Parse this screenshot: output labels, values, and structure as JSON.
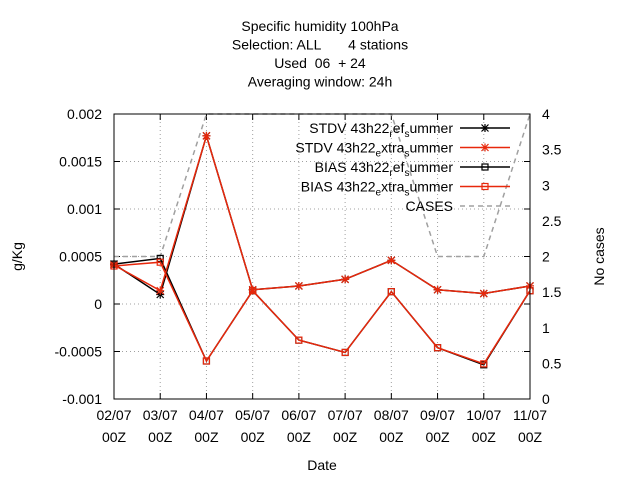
{
  "chart_data": {
    "type": "line",
    "title_lines": [
      "Specific humidity 100hPa",
      "Selection: ALL       4 stations",
      "Used  06  + 24",
      "Averaging window: 24h"
    ],
    "xlabel": "Date",
    "ylabel": "g/Kg",
    "y2label": "No cases",
    "categories": [
      [
        "02/07",
        "00Z"
      ],
      [
        "03/07",
        "00Z"
      ],
      [
        "04/07",
        "00Z"
      ],
      [
        "05/07",
        "00Z"
      ],
      [
        "06/07",
        "00Z"
      ],
      [
        "07/07",
        "00Z"
      ],
      [
        "08/07",
        "00Z"
      ],
      [
        "09/07",
        "00Z"
      ],
      [
        "10/07",
        "00Z"
      ],
      [
        "11/07",
        "00Z"
      ]
    ],
    "ylim": [
      -0.001,
      0.002
    ],
    "yticks": [
      "-0.001",
      "-0.0005",
      "0",
      "0.0005",
      "0.001",
      "0.0015",
      "0.002"
    ],
    "y2lim": [
      0,
      4
    ],
    "y2ticks": [
      "0",
      "0.5",
      "1",
      "1.5",
      "2",
      "2.5",
      "3",
      "3.5",
      "4"
    ],
    "grid": true,
    "legend_position": "top-right",
    "series": [
      {
        "name": "STDV 43h22",
        "label": {
          "base": "STDV 43h22",
          "sub1": "r",
          "mid": "ef",
          "sub2": "s",
          "tail": "ummer"
        },
        "color": "#000000",
        "marker": "star",
        "axis": "y",
        "values": [
          0.00042,
          0.0001,
          0.00177,
          0.00015,
          0.00019,
          0.00026,
          0.00046,
          0.00015,
          0.00011,
          0.00019
        ]
      },
      {
        "name": "STDV 43h22",
        "label": {
          "base": "STDV 43h22",
          "sub1": "e",
          "mid": "xtra",
          "sub2": "s",
          "tail": "ummer"
        },
        "color": "#e8280c",
        "marker": "star",
        "axis": "y",
        "values": [
          0.00041,
          0.00014,
          0.00177,
          0.00015,
          0.00019,
          0.00026,
          0.00046,
          0.00015,
          0.00011,
          0.00019
        ]
      },
      {
        "name": "BIAS 43h22",
        "label": {
          "base": "BIAS 43h22",
          "sub1": "r",
          "mid": "ef",
          "sub2": "s",
          "tail": "ummer"
        },
        "color": "#000000",
        "marker": "square",
        "axis": "y",
        "values": [
          0.00042,
          0.00048,
          -0.0006,
          0.00014,
          -0.00038,
          -0.00051,
          0.00013,
          -0.00046,
          -0.00064,
          0.00014
        ]
      },
      {
        "name": "BIAS 43h22",
        "label": {
          "base": "BIAS 43h22",
          "sub1": "e",
          "mid": "xtra",
          "sub2": "s",
          "tail": "ummer"
        },
        "color": "#e8280c",
        "marker": "square",
        "axis": "y",
        "values": [
          0.0004,
          0.00044,
          -0.0006,
          0.00014,
          -0.00038,
          -0.00051,
          0.00013,
          -0.00046,
          -0.00063,
          0.00014
        ]
      },
      {
        "name": "CASES",
        "label": {
          "base": "CASES"
        },
        "color": "#a0a0a0",
        "marker": "none",
        "dash": true,
        "axis": "y2",
        "values": [
          2,
          2,
          4,
          4,
          4,
          4,
          4,
          2,
          2,
          4
        ]
      }
    ]
  }
}
